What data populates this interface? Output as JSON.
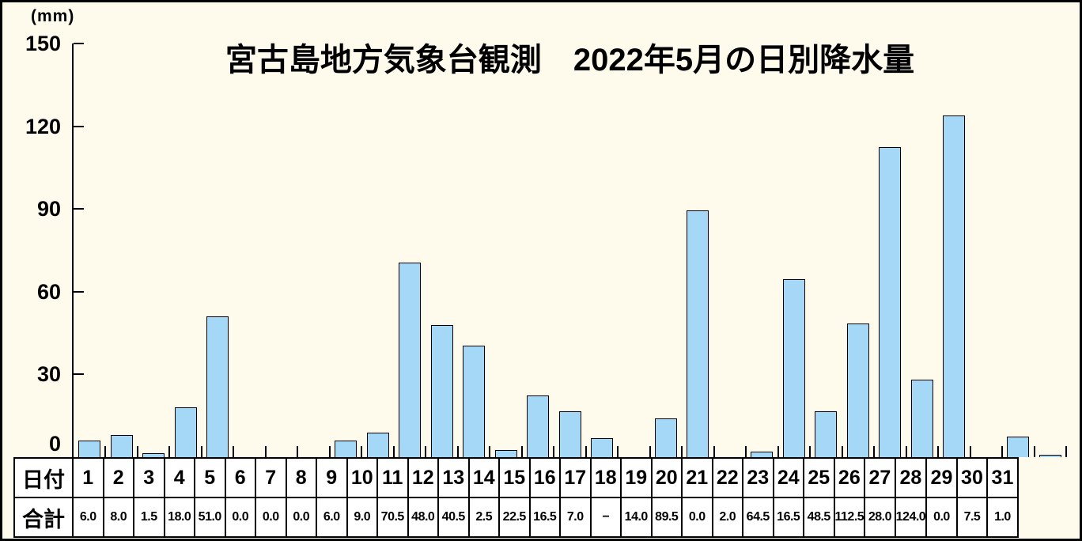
{
  "title": "宮古島地方気象台観測　2022年5月の日別降水量",
  "unit_label": "(mm)",
  "colors": {
    "background": "#fefbec",
    "bar_fill": "#a4d8f6",
    "bar_border": "#000000",
    "table_background": "#ffffff",
    "text": "#000000"
  },
  "table": {
    "date_row_header": "日付",
    "total_row_header": "合計",
    "dates": [
      1,
      2,
      3,
      4,
      5,
      6,
      7,
      8,
      9,
      10,
      11,
      12,
      13,
      14,
      15,
      16,
      17,
      18,
      19,
      20,
      21,
      22,
      23,
      24,
      25,
      26,
      27,
      28,
      29,
      30,
      31
    ],
    "totals_display": [
      "6.0",
      "8.0",
      "1.5",
      "18.0",
      "51.0",
      "0.0",
      "0.0",
      "0.0",
      "6.0",
      "9.0",
      "70.5",
      "48.0",
      "40.5",
      "2.5",
      "22.5",
      "16.5",
      "7.0",
      "−",
      "14.0",
      "89.5",
      "0.0",
      "2.0",
      "64.5",
      "16.5",
      "48.5",
      "112.5",
      "28.0",
      "124.0",
      "0.0",
      "7.5",
      "1.0"
    ]
  },
  "chart_data": {
    "type": "bar",
    "title": "宮古島地方気象台観測　2022年5月の日別降水量",
    "xlabel": "日付",
    "ylabel": "(mm)",
    "x": [
      1,
      2,
      3,
      4,
      5,
      6,
      7,
      8,
      9,
      10,
      11,
      12,
      13,
      14,
      15,
      16,
      17,
      18,
      19,
      20,
      21,
      22,
      23,
      24,
      25,
      26,
      27,
      28,
      29,
      30,
      31
    ],
    "values": [
      6.0,
      8.0,
      1.5,
      18.0,
      51.0,
      0.0,
      0.0,
      0.0,
      6.0,
      9.0,
      70.5,
      48.0,
      40.5,
      2.5,
      22.5,
      16.5,
      7.0,
      null,
      14.0,
      89.5,
      0.0,
      2.0,
      64.5,
      16.5,
      48.5,
      112.5,
      28.0,
      124.0,
      0.0,
      7.5,
      1.0
    ],
    "missing_value_label": "−",
    "ylim": [
      0,
      150
    ],
    "yticks": [
      0,
      30,
      60,
      90,
      120,
      150
    ],
    "grid": false,
    "legend": null,
    "bar_color": "#a4d8f6"
  }
}
